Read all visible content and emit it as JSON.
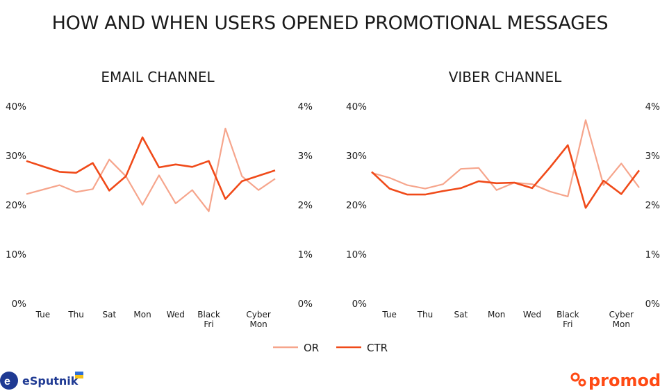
{
  "title": "HOW AND WHEN USERS OPENED PROMOTIONAL MESSAGES",
  "colors": {
    "or": "#f6a58c",
    "ctr": "#f04a19",
    "esputnik": "#1f3a93",
    "promodo": "#ff4a14"
  },
  "legend": [
    {
      "label": "OR",
      "color": "#f6a58c"
    },
    {
      "label": "CTR",
      "color": "#f04a19"
    }
  ],
  "logos": {
    "left": "eSputnik",
    "right": "promodo"
  },
  "chart_data": [
    {
      "type": "line",
      "title": "EMAIL CHANNEL",
      "x_tick_labels": [
        "",
        "Tue",
        "",
        "Thu",
        "",
        "Sat",
        "",
        "Mon",
        "",
        "Wed",
        "",
        "Black\nFri",
        "",
        "",
        "Cyber\nMon",
        ""
      ],
      "y_left": {
        "ticks": [
          "0%",
          "10%",
          "20%",
          "30%",
          "40%"
        ],
        "range": [
          0,
          40
        ]
      },
      "y_right": {
        "ticks": [
          "0%",
          "1%",
          "2%",
          "3%",
          "4%"
        ],
        "range": [
          0,
          4
        ]
      },
      "series": [
        {
          "name": "OR",
          "axis": "left",
          "color": "#f6a58c",
          "values": [
            22.2,
            23.1,
            24.0,
            22.6,
            23.2,
            29.2,
            25.8,
            20.0,
            26.0,
            20.3,
            23.0,
            18.7,
            35.5,
            25.8,
            23.0,
            25.3
          ]
        },
        {
          "name": "CTR",
          "axis": "right",
          "color": "#f04a19",
          "values": [
            2.89,
            2.78,
            2.67,
            2.65,
            2.85,
            2.29,
            2.58,
            3.37,
            2.76,
            2.82,
            2.77,
            2.89,
            2.12,
            2.48,
            2.59,
            2.7
          ]
        }
      ]
    },
    {
      "type": "line",
      "title": "VIBER CHANNEL",
      "x_tick_labels": [
        "",
        "Tue",
        "",
        "Thu",
        "",
        "Sat",
        "",
        "Mon",
        "",
        "Wed",
        "",
        "Black\nFri",
        "",
        "",
        "Cyber\nMon",
        ""
      ],
      "y_left": {
        "ticks": [
          "0%",
          "10%",
          "20%",
          "30%",
          "40%"
        ],
        "range": [
          0,
          40
        ]
      },
      "y_right": {
        "ticks": [
          "0%",
          "1%",
          "2%",
          "3%",
          "4%"
        ],
        "range": [
          0,
          4
        ]
      },
      "series": [
        {
          "name": "OR",
          "axis": "left",
          "color": "#f6a58c",
          "values": [
            26.5,
            25.5,
            24.0,
            23.3,
            24.2,
            27.3,
            27.5,
            23.0,
            24.5,
            24.2,
            22.7,
            21.7,
            37.2,
            24.0,
            28.4,
            23.5
          ]
        },
        {
          "name": "CTR",
          "axis": "right",
          "color": "#f04a19",
          "values": [
            2.67,
            2.33,
            2.21,
            2.21,
            2.28,
            2.34,
            2.48,
            2.44,
            2.45,
            2.34,
            2.76,
            3.21,
            1.94,
            2.49,
            2.22,
            2.7
          ]
        }
      ]
    }
  ]
}
